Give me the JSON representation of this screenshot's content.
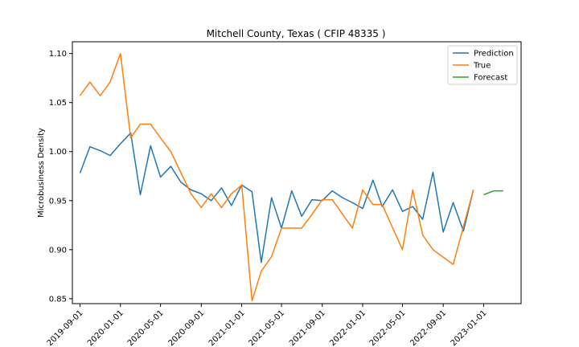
{
  "chart_data": {
    "type": "line",
    "title": "Mitchell County, Texas ( CFIP 48335 )",
    "xlabel": "",
    "ylabel": "Microbusiness Density",
    "ylim": [
      0.845,
      1.112
    ],
    "xlim": [
      "2019-08-09",
      "2023-04-24"
    ],
    "x_ticks": [
      "2019-09-01",
      "2020-01-01",
      "2020-05-01",
      "2020-09-01",
      "2021-01-01",
      "2021-05-01",
      "2021-09-01",
      "2022-01-01",
      "2022-05-01",
      "2022-09-01",
      "2023-01-01"
    ],
    "y_ticks": [
      "0.85",
      "0.90",
      "0.95",
      "1.00",
      "1.05",
      "1.10"
    ],
    "legend_position": "top-right",
    "series": [
      {
        "name": "Prediction",
        "color": "#1f77b4",
        "x": [
          "2019-09-01",
          "2019-10-01",
          "2019-11-01",
          "2019-12-01",
          "2020-01-01",
          "2020-02-01",
          "2020-03-01",
          "2020-04-01",
          "2020-05-01",
          "2020-06-01",
          "2020-07-01",
          "2020-08-01",
          "2020-09-01",
          "2020-10-01",
          "2020-11-01",
          "2020-12-01",
          "2021-01-01",
          "2021-02-01",
          "2021-03-01",
          "2021-04-01",
          "2021-05-01",
          "2021-06-01",
          "2021-07-01",
          "2021-08-01",
          "2021-09-01",
          "2021-10-01",
          "2021-11-01",
          "2021-12-01",
          "2022-01-01",
          "2022-02-01",
          "2022-03-01",
          "2022-04-01",
          "2022-05-01",
          "2022-06-01",
          "2022-07-01",
          "2022-08-01",
          "2022-09-01",
          "2022-10-01",
          "2022-11-01",
          "2022-12-01"
        ],
        "values": [
          0.978,
          1.005,
          1.001,
          0.996,
          1.008,
          1.019,
          0.956,
          1.006,
          0.974,
          0.985,
          0.969,
          0.961,
          0.957,
          0.95,
          0.963,
          0.945,
          0.966,
          0.959,
          0.887,
          0.953,
          0.922,
          0.96,
          0.934,
          0.951,
          0.95,
          0.96,
          0.953,
          0.948,
          0.942,
          0.971,
          0.944,
          0.961,
          0.939,
          0.944,
          0.931,
          0.979,
          0.918,
          0.948,
          0.919,
          0.961
        ]
      },
      {
        "name": "True",
        "color": "#ff7f0e",
        "x": [
          "2019-09-01",
          "2019-10-01",
          "2019-11-01",
          "2019-12-01",
          "2020-01-01",
          "2020-02-01",
          "2020-03-01",
          "2020-04-01",
          "2020-05-01",
          "2020-06-01",
          "2020-08-01",
          "2020-09-01",
          "2020-10-01",
          "2020-11-01",
          "2020-12-01",
          "2021-01-01",
          "2021-02-01",
          "2021-03-01",
          "2021-04-01",
          "2021-05-01",
          "2021-07-01",
          "2021-08-01",
          "2021-09-01",
          "2021-10-01",
          "2021-12-01",
          "2022-01-01",
          "2022-02-01",
          "2022-03-01",
          "2022-05-01",
          "2022-06-01",
          "2022-07-01",
          "2022-08-01",
          "2022-10-01",
          "2022-12-01"
        ],
        "values": [
          1.057,
          1.071,
          1.057,
          1.071,
          1.1,
          1.014,
          1.028,
          1.028,
          1.014,
          1.0,
          0.957,
          0.943,
          0.957,
          0.943,
          0.957,
          0.966,
          0.848,
          0.878,
          0.893,
          0.922,
          0.922,
          0.936,
          0.951,
          0.951,
          0.922,
          0.961,
          0.946,
          0.946,
          0.9,
          0.961,
          0.915,
          0.9,
          0.885,
          0.961
        ]
      },
      {
        "name": "Forecast",
        "color": "#2ca02c",
        "x": [
          "2023-01-01",
          "2023-02-01",
          "2023-03-01"
        ],
        "values": [
          0.956,
          0.96,
          0.96
        ]
      }
    ]
  }
}
